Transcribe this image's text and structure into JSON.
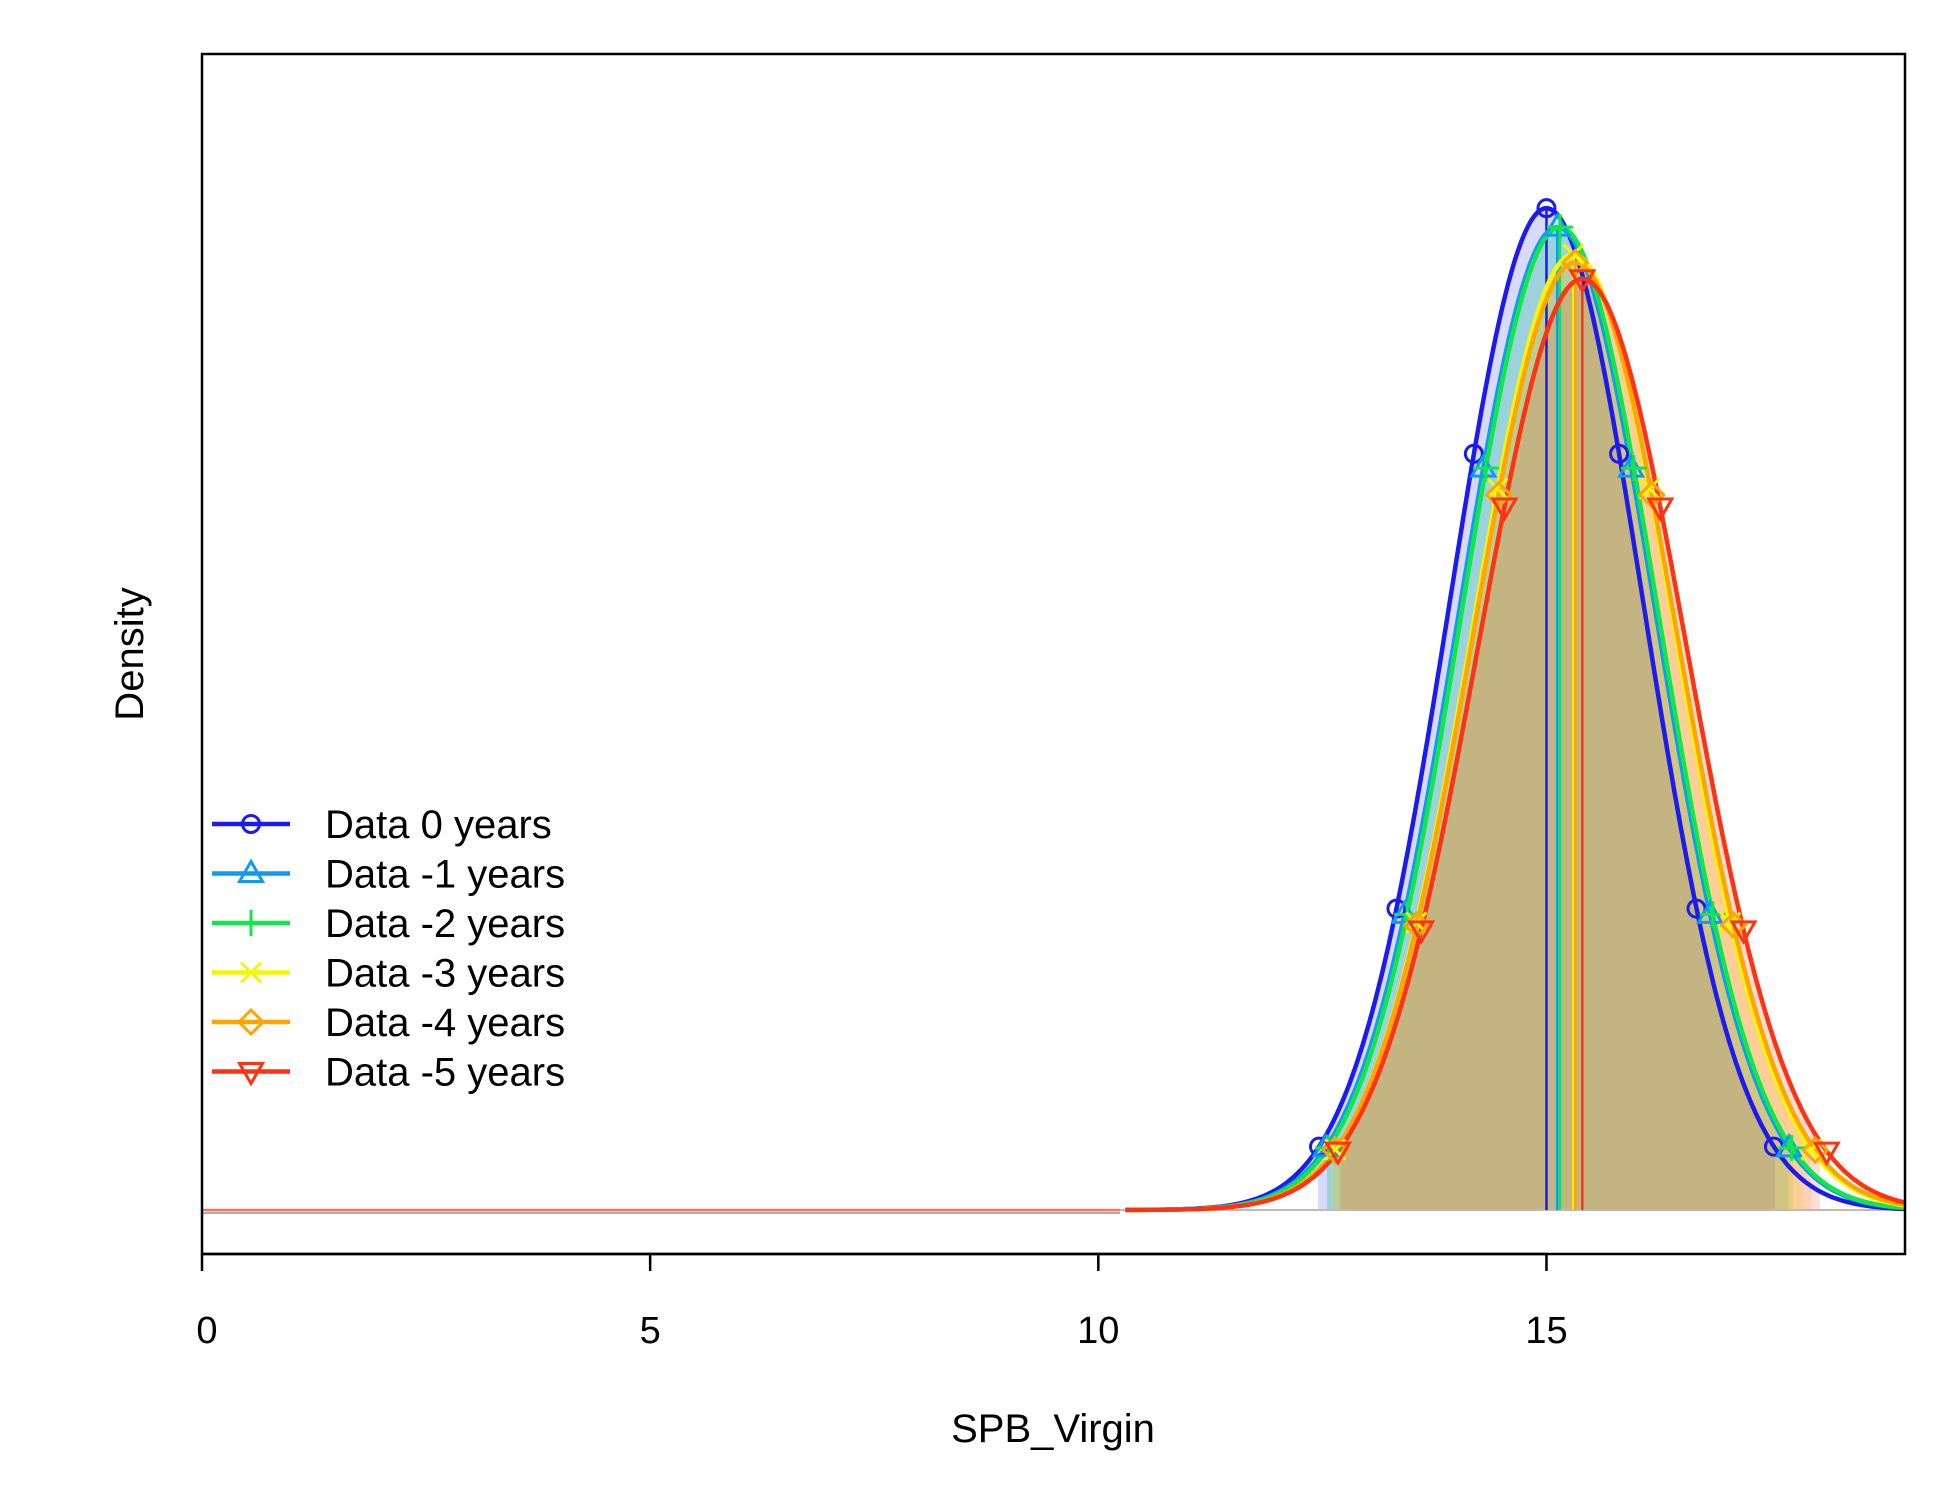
{
  "chart_data": {
    "type": "line",
    "title": "",
    "xlabel": "SPB_Virgin",
    "ylabel": "Density",
    "xlim": [
      0,
      19
    ],
    "x_ticks": [
      "0",
      "5",
      "10",
      "15"
    ],
    "x_tick_values": [
      0,
      5,
      10,
      15
    ],
    "y_ticks_shown": false,
    "grid": false,
    "legend_position": "left",
    "series": [
      {
        "name": "Data 0 years",
        "color": "#1b1bf0",
        "marker": "circle",
        "mean": 15.0,
        "sd": 1.08,
        "peak_density": 0.369,
        "ci": [
          12.45,
          17.55
        ]
      },
      {
        "name": "Data -1 years",
        "color": "#0f9bf0",
        "marker": "triangle-up",
        "mean": 15.12,
        "sd": 1.1,
        "peak_density": 0.362,
        "ci": [
          12.55,
          17.7
        ]
      },
      {
        "name": "Data -2 years",
        "color": "#12e64a",
        "marker": "plus",
        "mean": 15.15,
        "sd": 1.1,
        "peak_density": 0.362,
        "ci": [
          12.55,
          17.75
        ]
      },
      {
        "name": "Data -3 years",
        "color": "#f5f50a",
        "marker": "x",
        "mean": 15.3,
        "sd": 1.13,
        "peak_density": 0.352,
        "ci": [
          12.6,
          17.85
        ]
      },
      {
        "name": "Data -4 years",
        "color": "#ffa500",
        "marker": "diamond",
        "mean": 15.32,
        "sd": 1.14,
        "peak_density": 0.349,
        "ci": [
          12.62,
          17.95
        ]
      },
      {
        "name": "Data -5 years",
        "color": "#ff3311",
        "marker": "triangle-down",
        "mean": 15.4,
        "sd": 1.16,
        "peak_density": 0.343,
        "ci": [
          12.7,
          18.05
        ]
      }
    ]
  }
}
